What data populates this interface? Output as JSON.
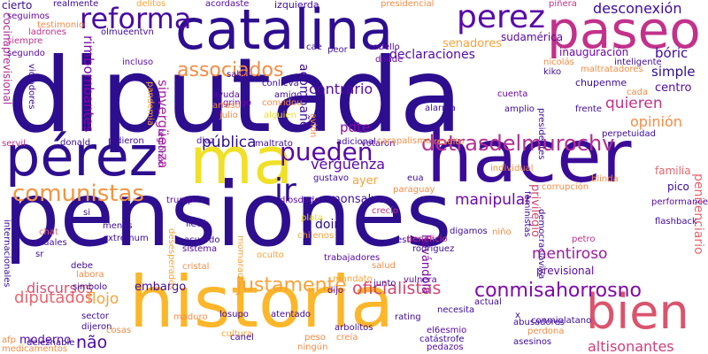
{
  "words": [
    {
      "text": "pensiones",
      "color": "#2d0e8f"
    },
    {
      "text": "diputada",
      "color": "#2d0e8f"
    },
    {
      "text": "historia",
      "color": "#fbb62a"
    },
    {
      "text": "catalina",
      "color": "#2d0e8f"
    },
    {
      "text": "hacer",
      "color": "#3a0b96"
    },
    {
      "text": "paseo",
      "color": "#c2318a"
    },
    {
      "text": "pérez",
      "color": "#2d0e8f"
    },
    {
      "text": "ma",
      "color": "#f0e028"
    },
    {
      "text": "bien",
      "color": "#d9546c"
    },
    {
      "text": "reforma",
      "color": "#4a0aa0"
    },
    {
      "text": "perez",
      "color": "#5a08a6"
    },
    {
      "text": "pueden",
      "color": "#5a08a6"
    },
    {
      "text": "comunistas",
      "color": "#f39442"
    },
    {
      "text": "detrasdelmurochv",
      "color": "#b42e92"
    },
    {
      "text": "ir",
      "color": "#2d0e8f"
    },
    {
      "text": "conmisahorrosno",
      "color": "#7e0aa7"
    },
    {
      "text": "associados",
      "color": "#f48c45"
    },
    {
      "text": "desconexión",
      "color": "#3d0b98"
    },
    {
      "text": "declaraciones",
      "color": "#5608a4"
    },
    {
      "text": "manipular",
      "color": "#6c07a8"
    },
    {
      "text": "oficialistas",
      "color": "#d2476f"
    },
    {
      "text": "justamente",
      "color": "#f7a33a"
    },
    {
      "text": "diputados",
      "color": "#e7656f"
    },
    {
      "text": "altisonantes",
      "color": "#cd3e7a"
    },
    {
      "text": "discursos",
      "color": "#d45372"
    },
    {
      "text": "mentiroso",
      "color": "#9a1aa0"
    },
    {
      "text": "contrario",
      "color": "#5608a4"
    },
    {
      "text": "vergüenza",
      "color": "#5a08a6"
    },
    {
      "text": "pública",
      "color": "#2d0e8f"
    },
    {
      "text": "acompañé",
      "color": "#3d0b98"
    },
    {
      "text": "quieren",
      "color": "#c2318a"
    },
    {
      "text": "simple",
      "color": "#2d0e8f"
    },
    {
      "text": "centro",
      "color": "#5608a4"
    },
    {
      "text": "bóric",
      "color": "#3d0b98"
    },
    {
      "text": "opinión",
      "color": "#f48c45"
    },
    {
      "text": "sinvergüenza",
      "color": "#a81f9c"
    },
    {
      "text": "rimbombantes",
      "color": "#7e0aa7"
    },
    {
      "text": "cocinaprevisional",
      "color": "#ae2a97"
    },
    {
      "text": "flojo",
      "color": "#f7a33a"
    },
    {
      "text": "embargo",
      "color": "#3d0b98"
    },
    {
      "text": "moderno",
      "color": "#5608a4"
    },
    {
      "text": "não",
      "color": "#4a0aa0"
    },
    {
      "text": "doin",
      "color": "#2d0e8f"
    },
    {
      "text": "ayer",
      "color": "#f7a33a"
    },
    {
      "text": "monsalve",
      "color": "#3d0b98"
    },
    {
      "text": "pdte",
      "color": "#8a0da5"
    },
    {
      "text": "senadores",
      "color": "#f7a33a"
    },
    {
      "text": "inauguración",
      "color": "#6c07a8"
    },
    {
      "text": "sudamérica",
      "color": "#5608a4"
    },
    {
      "text": "chupenme",
      "color": "#3d0b98"
    },
    {
      "text": "privilegio",
      "color": "#d2476f"
    },
    {
      "text": "penitenciario",
      "color": "#e7656f"
    },
    {
      "text": "familia",
      "color": "#e7656f"
    },
    {
      "text": "pico",
      "color": "#3d0b98"
    },
    {
      "text": "llevándola",
      "color": "#7e0aa7"
    },
    {
      "text": "previsional",
      "color": "#5608a4"
    },
    {
      "text": "cierto",
      "color": "#3d0b98"
    },
    {
      "text": "izquierda",
      "color": "#3d0b98"
    },
    {
      "text": "delitos",
      "color": "#f7a33a"
    },
    {
      "text": "acordaste",
      "color": "#5608a4"
    },
    {
      "text": "presidencial",
      "color": "#f48c45"
    },
    {
      "text": "piñera",
      "color": "#c2318a"
    },
    {
      "text": "olmueentvn",
      "color": "#3d0b98"
    },
    {
      "text": "incluso",
      "color": "#5608a4"
    },
    {
      "text": "pandemia",
      "color": "#f7a33a"
    },
    {
      "text": "ayuda",
      "color": "#5608a4"
    },
    {
      "text": "amigo",
      "color": "#3d0b98"
    },
    {
      "text": "avión",
      "color": "#f48c45"
    },
    {
      "text": "siempre",
      "color": "#c2318a"
    },
    {
      "text": "segundo",
      "color": "#5608a4"
    },
    {
      "text": "seguimos",
      "color": "#6c07a8"
    },
    {
      "text": "cabello",
      "color": "#5608a4"
    },
    {
      "text": "dónde",
      "color": "#6c07a8"
    },
    {
      "text": "pidieron",
      "color": "#3d0b98"
    },
    {
      "text": "votaron",
      "color": "#5608a4"
    },
    {
      "text": "gringo",
      "color": "#6c07a8"
    },
    {
      "text": "servil",
      "color": "#c2318a"
    },
    {
      "text": "regional",
      "color": "#8a0da5"
    },
    {
      "text": "menos",
      "color": "#3d0b98"
    },
    {
      "text": "extremum",
      "color": "#3d0b98"
    },
    {
      "text": "sr",
      "color": "#3d0b98"
    },
    {
      "text": "sector",
      "color": "#3d0b98"
    },
    {
      "text": "dijeron",
      "color": "#3d0b98"
    },
    {
      "text": "internacionales",
      "color": "#3d0b98"
    },
    {
      "text": "diosdado",
      "color": "#5608a4"
    },
    {
      "text": "chilenos",
      "color": "#f7a33a"
    },
    {
      "text": "plata",
      "color": "#f0e028"
    },
    {
      "text": "crecío",
      "color": "#c2318a"
    },
    {
      "text": "oculto",
      "color": "#f7a33a"
    },
    {
      "text": "salud",
      "color": "#f48c45"
    },
    {
      "text": "junto",
      "color": "#3d0b98"
    },
    {
      "text": "dijo",
      "color": "#5608a4"
    },
    {
      "text": "mandato",
      "color": "#f7a33a"
    },
    {
      "text": "atentado",
      "color": "#3d0b98"
    },
    {
      "text": "cultura",
      "color": "#f7a33a"
    },
    {
      "text": "necesita",
      "color": "#3d0b98"
    },
    {
      "text": "el6esmio",
      "color": "#5608a4"
    },
    {
      "text": "catástrofe",
      "color": "#3d0b98"
    },
    {
      "text": "pedazos",
      "color": "#5608a4"
    },
    {
      "text": "conmiplatano",
      "color": "#3d0b98"
    },
    {
      "text": "niño",
      "color": "#f48c45"
    },
    {
      "text": "x",
      "color": "#3d0b98"
    },
    {
      "text": "desesperados",
      "color": "#f7a33a"
    },
    {
      "text": "momaracho",
      "color": "#f7a33a"
    },
    {
      "text": "losupo",
      "color": "#3d0b98"
    },
    {
      "text": "si",
      "color": "#3d0b98"
    },
    {
      "text": "llevó",
      "color": "#3d0b98"
    },
    {
      "text": "acuerdo",
      "color": "#3d0b98"
    },
    {
      "text": "sistema",
      "color": "#5608a4"
    },
    {
      "text": "cristal",
      "color": "#f48c45"
    },
    {
      "text": "medicamentos",
      "color": "#f48c45"
    },
    {
      "text": "sexuales",
      "color": "#3d0b98"
    },
    {
      "text": "chat",
      "color": "#e7656f"
    },
    {
      "text": "debe",
      "color": "#3d0b98"
    },
    {
      "text": "labora",
      "color": "#f48c45"
    },
    {
      "text": "simbolo",
      "color": "#3d0b98"
    },
    {
      "text": "gustavo",
      "color": "#3d0b98"
    },
    {
      "text": "trump",
      "color": "#5608a4"
    },
    {
      "text": "maltrato",
      "color": "#3d0b98"
    },
    {
      "text": "ladrones",
      "color": "#c2318a"
    },
    {
      "text": "realmente",
      "color": "#3d0b98"
    },
    {
      "text": "frente",
      "color": "#3d0b98"
    },
    {
      "text": "amplio",
      "color": "#3d0b98"
    },
    {
      "text": "cuenta",
      "color": "#6c07a8"
    },
    {
      "text": "inteligente",
      "color": "#3d0b98"
    },
    {
      "text": "nicolás",
      "color": "#f48c45"
    },
    {
      "text": "maltratadores",
      "color": "#f48c45"
    },
    {
      "text": "performance",
      "color": "#5608a4"
    },
    {
      "text": "flashback",
      "color": "#3d0b98"
    },
    {
      "text": "perpetuidad",
      "color": "#3d0b98"
    },
    {
      "text": "presidentes",
      "color": "#3d0b98"
    },
    {
      "text": "diaz",
      "color": "#3d0b98"
    },
    {
      "text": "donald",
      "color": "#3d0b98"
    },
    {
      "text": "sabía",
      "color": "#3d0b98"
    },
    {
      "text": "julio",
      "color": "#f48c45"
    },
    {
      "text": "arraso",
      "color": "#f48c45"
    },
    {
      "text": "alguien",
      "color": "#f0e028"
    },
    {
      "text": "convidou",
      "color": "#f48c45"
    },
    {
      "text": "conlleva",
      "color": "#3d0b98"
    },
    {
      "text": "resulto",
      "color": "#f48c45"
    },
    {
      "text": "adicional",
      "color": "#3d0b98"
    },
    {
      "text": "carapalismo",
      "color": "#f48c45"
    },
    {
      "text": "alarma",
      "color": "#3d0b98"
    },
    {
      "text": "peor",
      "color": "#3d0b98"
    },
    {
      "text": "paraguay",
      "color": "#f48c45"
    },
    {
      "text": "estupidez",
      "color": "#3d0b98"
    },
    {
      "text": "digamos",
      "color": "#3d0b98"
    },
    {
      "text": "rodriguez",
      "color": "#3d0b98"
    },
    {
      "text": "beneficio",
      "color": "#c2318a"
    },
    {
      "text": "trabajadores",
      "color": "#5608a4"
    },
    {
      "text": "vulnera",
      "color": "#5608a4"
    },
    {
      "text": "actual",
      "color": "#3d0b98"
    },
    {
      "text": "abusadores",
      "color": "#3d0b98"
    },
    {
      "text": "perdona",
      "color": "#f48c45"
    },
    {
      "text": "rating",
      "color": "#3d0b98"
    },
    {
      "text": "arbolitos",
      "color": "#3d0b98"
    },
    {
      "text": "creía",
      "color": "#f48c45"
    },
    {
      "text": "canel",
      "color": "#3d0b98"
    },
    {
      "text": "peso",
      "color": "#f48c45"
    },
    {
      "text": "maduro",
      "color": "#f48c45"
    },
    {
      "text": "cosas",
      "color": "#f48c45"
    },
    {
      "text": "deleznable",
      "color": "#3d0b98"
    },
    {
      "text": "ningún",
      "color": "#f48c45"
    },
    {
      "text": "asesinos",
      "color": "#3d0b98"
    },
    {
      "text": "petro",
      "color": "#c2318a"
    },
    {
      "text": "cada",
      "color": "#f48c45"
    },
    {
      "text": "kiko",
      "color": "#3d0b98"
    },
    {
      "text": "feministas",
      "color": "#3d0b98"
    },
    {
      "text": "democraciaviva",
      "color": "#3d0b98"
    },
    {
      "text": "individual",
      "color": "#f48c45"
    },
    {
      "text": "blinda",
      "color": "#f48c45"
    },
    {
      "text": "corrupción",
      "color": "#f48c45"
    },
    {
      "text": "cae",
      "color": "#3d0b98"
    },
    {
      "text": "eua",
      "color": "#3d0b98"
    },
    {
      "text": "violadores",
      "color": "#3d0b98"
    },
    {
      "text": "afp",
      "color": "#f48c45"
    },
    {
      "text": "testimonio",
      "color": "#f48c45"
    }
  ]
}
